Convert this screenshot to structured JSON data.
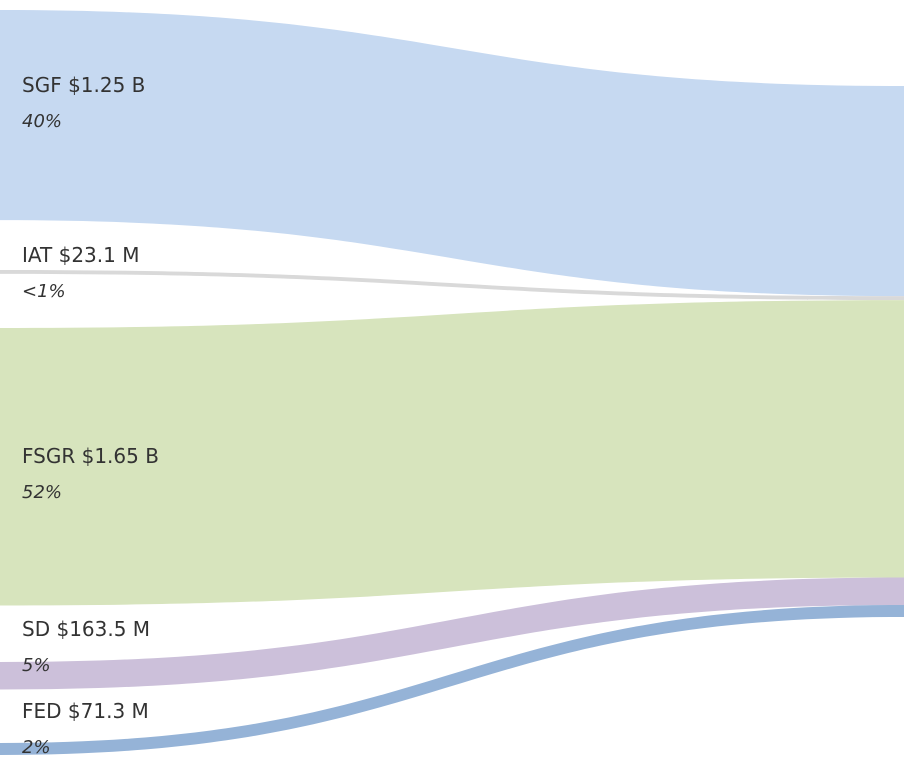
{
  "chart_data": {
    "type": "sankey",
    "categories": [
      "SGF",
      "IAT",
      "FSGR",
      "SD",
      "FED"
    ],
    "values": [
      1250000000,
      23100000,
      1650000000,
      163500000,
      71300000
    ],
    "value_labels": [
      "$1.25 B",
      "$23.1 M",
      "$1.65 B",
      "$163.5 M",
      "$71.3 M"
    ],
    "percent_labels": [
      "40%",
      "<1%",
      "52%",
      "5%",
      "2%"
    ],
    "colors": [
      "#c6d9f1",
      "#d9d9d9",
      "#d7e4bd",
      "#ccc0da",
      "#95b3d7"
    ]
  }
}
